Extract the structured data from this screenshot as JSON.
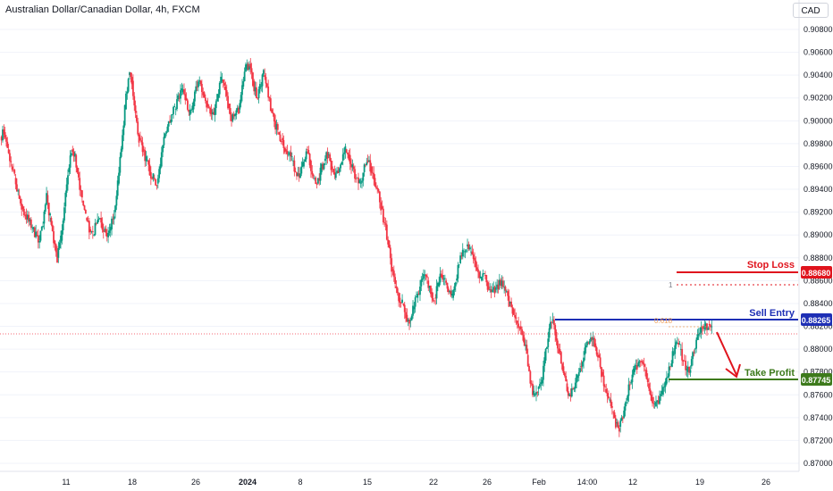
{
  "header": {
    "title": "Australian Dollar/Canadian Dollar, 4h, FXCM",
    "currency": "CAD"
  },
  "annotations": {
    "stop_loss": {
      "label": "Stop Loss",
      "value": "0.88680",
      "color": "#e0141d"
    },
    "sell_entry": {
      "label": "Sell Entry",
      "value": "0.88265",
      "color": "#1e2fb5"
    },
    "take_profit": {
      "label": "Take Profit",
      "value": "0.87745",
      "color": "#3d7a1c"
    },
    "fib_one": "1",
    "fib_618": "0.618",
    "arrow_color": "#e0141d"
  },
  "chart_data": {
    "type": "candlestick",
    "title": "Australian Dollar/Canadian Dollar, 4h, FXCM",
    "y_ticks": [
      "0.87000",
      "0.87200",
      "0.87400",
      "0.87600",
      "0.87800",
      "0.88000",
      "0.88200",
      "0.88400",
      "0.88600",
      "0.88800",
      "0.89000",
      "0.89200",
      "0.89400",
      "0.89600",
      "0.89800",
      "0.90000",
      "0.90200",
      "0.90400",
      "0.90600",
      "0.90800"
    ],
    "ylim": [
      0.8699,
      0.9088
    ],
    "x_ticks": [
      "11",
      "18",
      "26",
      "2024",
      "8",
      "15",
      "22",
      "26",
      "Feb",
      "14:00",
      "12",
      "19",
      "26"
    ],
    "up_color": "#089981",
    "down_color": "#f23645",
    "close_series": [
      0.899,
      0.8975,
      0.896,
      0.895,
      0.8935,
      0.8925,
      0.8918,
      0.8912,
      0.8905,
      0.89,
      0.8895,
      0.891,
      0.8935,
      0.8915,
      0.8895,
      0.888,
      0.8895,
      0.8925,
      0.8955,
      0.8975,
      0.897,
      0.895,
      0.893,
      0.8915,
      0.8905,
      0.89,
      0.891,
      0.8915,
      0.8905,
      0.8898,
      0.8905,
      0.892,
      0.8945,
      0.8975,
      0.901,
      0.904,
      0.9035,
      0.9005,
      0.8985,
      0.8975,
      0.8965,
      0.8955,
      0.895,
      0.8945,
      0.896,
      0.8985,
      0.8995,
      0.9005,
      0.901,
      0.902,
      0.9025,
      0.902,
      0.9005,
      0.901,
      0.903,
      0.9035,
      0.9025,
      0.9015,
      0.901,
      0.9005,
      0.902,
      0.9035,
      0.903,
      0.9015,
      0.9,
      0.9005,
      0.901,
      0.903,
      0.9045,
      0.905,
      0.9035,
      0.902,
      0.903,
      0.904,
      0.903,
      0.901,
      0.9,
      0.899,
      0.8985,
      0.8975,
      0.897,
      0.8965,
      0.8955,
      0.895,
      0.896,
      0.8975,
      0.8965,
      0.895,
      0.8945,
      0.8955,
      0.8965,
      0.897,
      0.896,
      0.895,
      0.8955,
      0.8965,
      0.8975,
      0.897,
      0.896,
      0.895,
      0.8945,
      0.8955,
      0.8965,
      0.896,
      0.895,
      0.894,
      0.8925,
      0.891,
      0.8895,
      0.887,
      0.8855,
      0.8845,
      0.884,
      0.883,
      0.8825,
      0.8835,
      0.8845,
      0.8855,
      0.8865,
      0.886,
      0.885,
      0.8845,
      0.8855,
      0.8865,
      0.886,
      0.885,
      0.8845,
      0.886,
      0.8875,
      0.8885,
      0.889,
      0.8885,
      0.888,
      0.887,
      0.886,
      0.8865,
      0.8855,
      0.885,
      0.8852,
      0.8856,
      0.886,
      0.885,
      0.884,
      0.8835,
      0.8825,
      0.882,
      0.881,
      0.8795,
      0.877,
      0.876,
      0.8765,
      0.877,
      0.879,
      0.881,
      0.8825,
      0.8815,
      0.88,
      0.8785,
      0.877,
      0.876,
      0.8765,
      0.8775,
      0.8785,
      0.8795,
      0.8805,
      0.881,
      0.8805,
      0.8795,
      0.878,
      0.8765,
      0.8755,
      0.8745,
      0.8735,
      0.8732,
      0.874,
      0.8755,
      0.877,
      0.878,
      0.8785,
      0.879,
      0.8782,
      0.877,
      0.8758,
      0.875,
      0.8752,
      0.876,
      0.877,
      0.8785,
      0.8795,
      0.8805,
      0.88,
      0.879,
      0.878,
      0.8785,
      0.88,
      0.8812,
      0.882,
      0.8818,
      0.8822,
      0.8816
    ]
  }
}
